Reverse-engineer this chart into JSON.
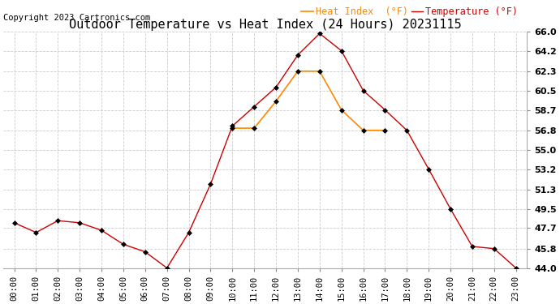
{
  "title": "Outdoor Temperature vs Heat Index (24 Hours) 20231115",
  "copyright": "Copyright 2023 Cartronics.com",
  "legend_heat": "Heat Index  (°F)",
  "legend_temp": "Temperature (°F)",
  "hours": [
    "00:00",
    "01:00",
    "02:00",
    "03:00",
    "04:00",
    "05:00",
    "06:00",
    "07:00",
    "08:00",
    "09:00",
    "10:00",
    "11:00",
    "12:00",
    "13:00",
    "14:00",
    "15:00",
    "16:00",
    "17:00",
    "18:00",
    "19:00",
    "20:00",
    "21:00",
    "22:00",
    "23:00"
  ],
  "temperature": [
    48.2,
    47.3,
    48.4,
    48.2,
    47.5,
    46.2,
    45.5,
    44.0,
    47.3,
    51.8,
    57.2,
    59.0,
    60.8,
    63.8,
    65.8,
    64.2,
    60.5,
    58.7,
    56.8,
    53.2,
    49.5,
    46.0,
    45.8,
    44.0
  ],
  "heat_index": [
    null,
    null,
    null,
    null,
    null,
    null,
    null,
    null,
    null,
    null,
    57.0,
    57.0,
    59.5,
    62.3,
    62.3,
    58.7,
    56.8,
    56.8,
    null,
    null,
    null,
    null,
    null,
    null
  ],
  "temp_color": "#cc0000",
  "heat_color": "#ff8800",
  "marker_color": "#000000",
  "marker": "D",
  "marker_size": 3,
  "ylim_min": 44.0,
  "ylim_max": 66.0,
  "yticks": [
    44.0,
    45.8,
    47.7,
    49.5,
    51.3,
    53.2,
    55.0,
    56.8,
    58.7,
    60.5,
    62.3,
    64.2,
    66.0
  ],
  "background_color": "#ffffff",
  "grid_color": "#cccccc",
  "title_fontsize": 11,
  "copyright_fontsize": 7.5,
  "legend_fontsize": 8.5,
  "tick_fontsize": 7.5,
  "ytick_fontsize": 8
}
